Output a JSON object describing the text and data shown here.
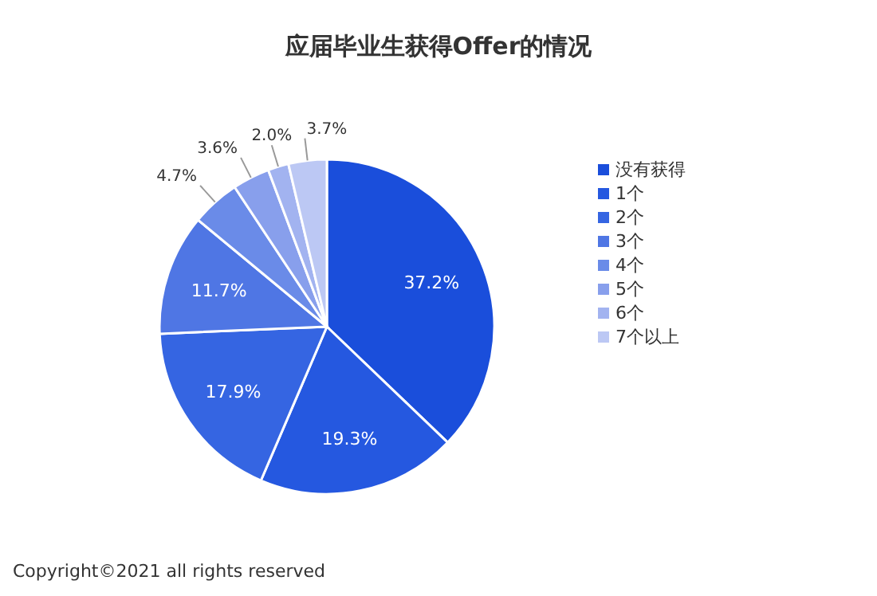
{
  "chart_data": {
    "type": "pie",
    "title": "应届毕业生获得Offer的情况",
    "categories": [
      "没有获得",
      "1个",
      "2个",
      "3个",
      "4个",
      "5个",
      "6个",
      "7个以上"
    ],
    "values": [
      37.2,
      19.3,
      17.9,
      11.7,
      4.7,
      3.6,
      2.0,
      3.7
    ],
    "value_labels": [
      "37.2%",
      "19.3%",
      "17.9%",
      "11.7%",
      "4.7%",
      "3.6%",
      "2.0%",
      "3.7%"
    ],
    "colors": [
      "#1a4edb",
      "#2558e0",
      "#3565e2",
      "#4f76e4",
      "#6a8be8",
      "#889fec",
      "#a2b3f0",
      "#bcc8f4"
    ],
    "legend": "right",
    "annotations": [
      "Copyright©2021 all rights reserved"
    ]
  }
}
